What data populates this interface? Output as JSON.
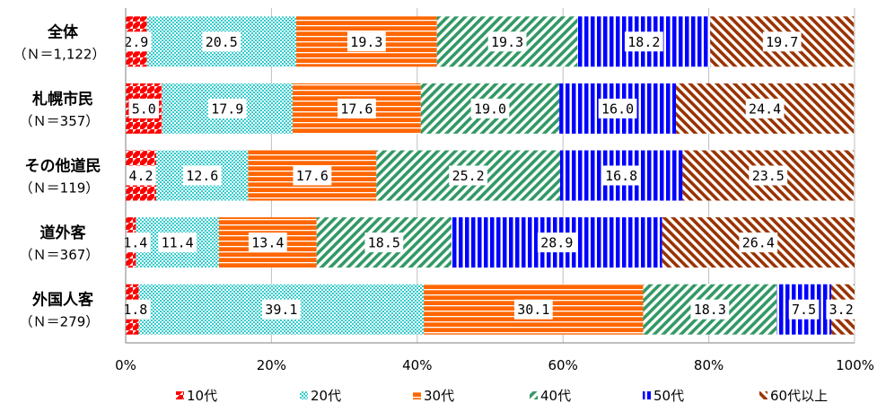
{
  "chart_data": {
    "type": "bar",
    "orientation": "horizontal",
    "stacked": true,
    "categories": [
      {
        "name": "全体",
        "n": "（Ｎ＝1,122）"
      },
      {
        "name": "札幌市民",
        "n": "（Ｎ＝357）"
      },
      {
        "name": "その他道民",
        "n": "（Ｎ＝119）"
      },
      {
        "name": "道外客",
        "n": "（Ｎ＝367）"
      },
      {
        "name": "外国人客",
        "n": "（Ｎ＝279）"
      }
    ],
    "series": [
      {
        "name": "10代",
        "color": "#ff0000",
        "pattern": "diagonal-checker",
        "values": [
          2.9,
          5.0,
          4.2,
          1.4,
          1.8
        ]
      },
      {
        "name": "20代",
        "color": "#33cccc",
        "pattern": "checker",
        "values": [
          20.5,
          17.9,
          12.6,
          11.4,
          39.1
        ]
      },
      {
        "name": "30代",
        "color": "#ff6600",
        "pattern": "horizontal-stripes",
        "values": [
          19.3,
          17.6,
          17.6,
          13.4,
          30.1
        ]
      },
      {
        "name": "40代",
        "color": "#339966",
        "pattern": "diagonal-stripes-up",
        "values": [
          19.3,
          19.0,
          25.2,
          18.5,
          18.3
        ]
      },
      {
        "name": "50代",
        "color": "#0000ff",
        "pattern": "vertical-stripes",
        "values": [
          18.2,
          16.0,
          16.8,
          28.9,
          7.5
        ]
      },
      {
        "name": "60代以上",
        "color": "#993300",
        "pattern": "diagonal-stripes-down",
        "values": [
          19.7,
          24.4,
          23.5,
          26.4,
          3.2
        ]
      }
    ],
    "value_labels": [
      [
        "2.9",
        "20.5",
        "19.3",
        "19.3",
        "18.2",
        "19.7"
      ],
      [
        "5.0",
        "17.9",
        "17.6",
        "19.0",
        "16.0",
        "24.4"
      ],
      [
        "4.2",
        "12.6",
        "17.6",
        "25.2",
        "16.8",
        "23.5"
      ],
      [
        "1.4",
        "11.4",
        "13.4",
        "18.5",
        "28.9",
        "26.4"
      ],
      [
        "1.8",
        "39.1",
        "30.1",
        "18.3",
        "7.5",
        "3.2"
      ]
    ],
    "xaxis": {
      "min": 0,
      "max": 100,
      "ticks": [
        0,
        20,
        40,
        60,
        80,
        100
      ],
      "tick_labels": [
        "0%",
        "20%",
        "40%",
        "60%",
        "80%",
        "100%"
      ]
    },
    "gridlines": true,
    "legend_position": "bottom",
    "title": "",
    "xlabel": "",
    "ylabel": ""
  }
}
